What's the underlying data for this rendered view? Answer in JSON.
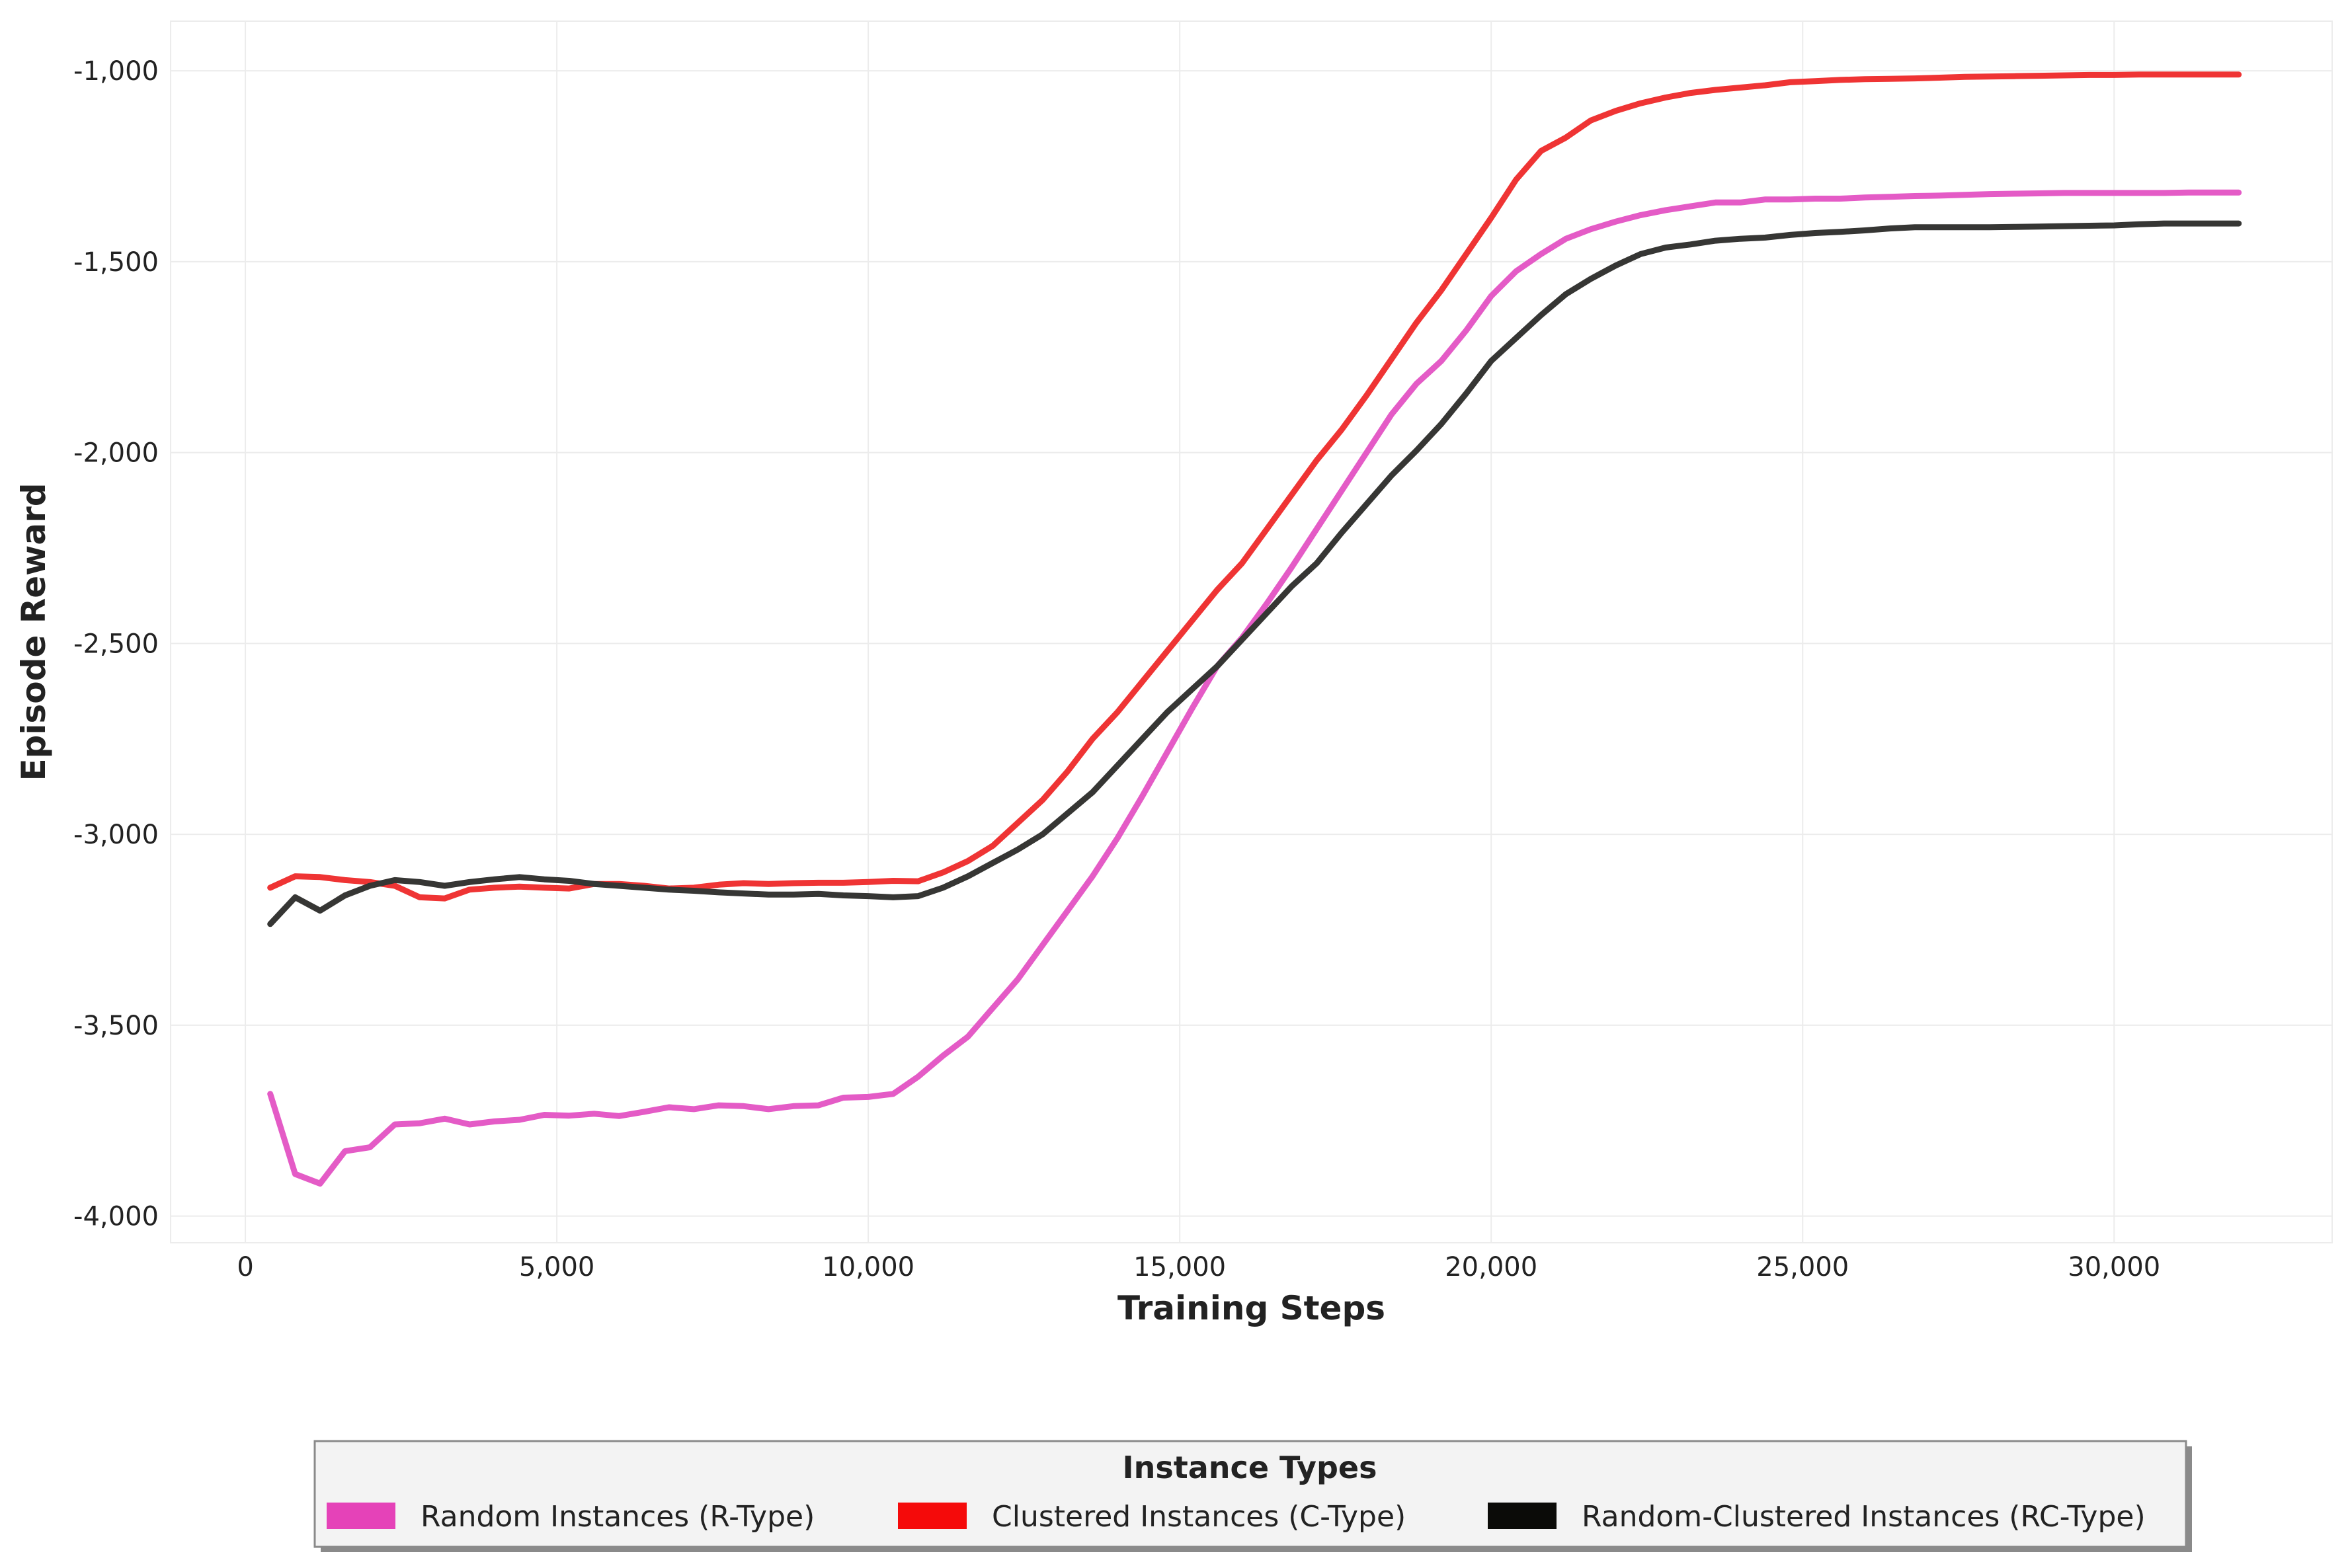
{
  "chart_data": {
    "type": "line",
    "title": "",
    "xlabel": "Training Steps",
    "ylabel": "Episode Reward",
    "xlim": [
      -1200,
      33500
    ],
    "ylim": [
      -4070,
      -870
    ],
    "x_ticks": [
      0,
      5000,
      10000,
      15000,
      20000,
      25000,
      30000
    ],
    "x_tick_labels": [
      "0",
      "5,000",
      "10,000",
      "15,000",
      "20,000",
      "25,000",
      "30,000"
    ],
    "y_ticks": [
      -4000,
      -3500,
      -3000,
      -2500,
      -2000,
      -1500,
      -1000
    ],
    "y_tick_labels": [
      "-4,000",
      "-3,500",
      "-3,000",
      "-2,500",
      "-2,000",
      "-1,500",
      "-1,000"
    ],
    "grid": true,
    "legend": {
      "title": "Instance Types",
      "placement": "bottom-center",
      "entries": [
        {
          "label": "Random Instances (R-Type)",
          "color": "#e542b8"
        },
        {
          "label": "Clustered Instances (C-Type)",
          "color": "#f50a0a"
        },
        {
          "label": "Random-Clustered Instances (RC-Type)",
          "color": "#0b0b08"
        }
      ]
    },
    "series": [
      {
        "name": "Random Instances (R-Type)",
        "color": "#e45bc6",
        "x": [
          400,
          800,
          1200,
          1600,
          2000,
          2400,
          2800,
          3200,
          3600,
          4000,
          4400,
          4800,
          5200,
          5600,
          6000,
          6400,
          6800,
          7200,
          7600,
          8000,
          8400,
          8800,
          9200,
          9600,
          10000,
          10400,
          10800,
          11200,
          11600,
          12000,
          12400,
          12800,
          13200,
          13600,
          14000,
          14400,
          14800,
          15200,
          15600,
          16000,
          16400,
          16800,
          17200,
          17600,
          18000,
          18400,
          18800,
          19200,
          19600,
          20000,
          20400,
          20800,
          21200,
          21600,
          22000,
          22400,
          22800,
          23200,
          23600,
          24000,
          24400,
          24800,
          25200,
          25600,
          26000,
          26400,
          26800,
          27200,
          27600,
          28000,
          28400,
          28800,
          29200,
          29600,
          30000,
          30400,
          30800,
          31200,
          31600,
          32000
        ],
        "values": [
          -3680,
          -3890,
          -3915,
          -3830,
          -3820,
          -3760,
          -3757,
          -3745,
          -3760,
          -3752,
          -3748,
          -3735,
          -3737,
          -3732,
          -3738,
          -3727,
          -3715,
          -3720,
          -3710,
          -3712,
          -3720,
          -3712,
          -3710,
          -3690,
          -3688,
          -3680,
          -3635,
          -3580,
          -3530,
          -3455,
          -3380,
          -3290,
          -3200,
          -3110,
          -3010,
          -2900,
          -2785,
          -2670,
          -2560,
          -2485,
          -2395,
          -2300,
          -2200,
          -2100,
          -2000,
          -1900,
          -1820,
          -1760,
          -1680,
          -1590,
          -1525,
          -1480,
          -1440,
          -1415,
          -1395,
          -1378,
          -1365,
          -1355,
          -1345,
          -1345,
          -1337,
          -1337,
          -1335,
          -1335,
          -1332,
          -1330,
          -1328,
          -1327,
          -1325,
          -1323,
          -1322,
          -1321,
          -1320,
          -1320,
          -1320,
          -1320,
          -1320,
          -1319,
          -1319,
          -1319
        ]
      },
      {
        "name": "Clustered Instances (C-Type)",
        "color": "#ef3434",
        "x": [
          400,
          800,
          1200,
          1600,
          2000,
          2400,
          2800,
          3200,
          3600,
          4000,
          4400,
          4800,
          5200,
          5600,
          6000,
          6400,
          6800,
          7200,
          7600,
          8000,
          8400,
          8800,
          9200,
          9600,
          10000,
          10400,
          10800,
          11200,
          11600,
          12000,
          12400,
          12800,
          13200,
          13600,
          14000,
          14400,
          14800,
          15200,
          15600,
          16000,
          16400,
          16800,
          17200,
          17600,
          18000,
          18400,
          18800,
          19200,
          19600,
          20000,
          20400,
          20800,
          21200,
          21600,
          22000,
          22400,
          22800,
          23200,
          23600,
          24000,
          24400,
          24800,
          25200,
          25600,
          26000,
          26400,
          26800,
          27200,
          27600,
          28000,
          28400,
          28800,
          29200,
          29600,
          30000,
          30400,
          30800,
          31200,
          31600,
          32000
        ],
        "values": [
          -3140,
          -3110,
          -3112,
          -3120,
          -3125,
          -3135,
          -3165,
          -3168,
          -3145,
          -3140,
          -3137,
          -3140,
          -3142,
          -3130,
          -3130,
          -3135,
          -3142,
          -3140,
          -3132,
          -3128,
          -3130,
          -3128,
          -3127,
          -3127,
          -3125,
          -3122,
          -3123,
          -3100,
          -3070,
          -3030,
          -2970,
          -2910,
          -2835,
          -2750,
          -2680,
          -2600,
          -2520,
          -2440,
          -2360,
          -2290,
          -2200,
          -2110,
          -2020,
          -1940,
          -1850,
          -1755,
          -1660,
          -1575,
          -1480,
          -1385,
          -1285,
          -1210,
          -1175,
          -1130,
          -1105,
          -1085,
          -1070,
          -1058,
          -1050,
          -1044,
          -1038,
          -1030,
          -1027,
          -1024,
          -1022,
          -1021,
          -1020,
          -1018,
          -1016,
          -1015,
          -1014,
          -1013,
          -1012,
          -1011,
          -1011,
          -1010,
          -1010,
          -1010,
          -1010,
          -1010
        ]
      },
      {
        "name": "Random-Clustered Instances (RC-Type)",
        "color": "#363634",
        "x": [
          400,
          800,
          1200,
          1600,
          2000,
          2400,
          2800,
          3200,
          3600,
          4000,
          4400,
          4800,
          5200,
          5600,
          6000,
          6400,
          6800,
          7200,
          7600,
          8000,
          8400,
          8800,
          9200,
          9600,
          10000,
          10400,
          10800,
          11200,
          11600,
          12000,
          12400,
          12800,
          13200,
          13600,
          14000,
          14400,
          14800,
          15200,
          15600,
          16000,
          16400,
          16800,
          17200,
          17600,
          18000,
          18400,
          18800,
          19200,
          19600,
          20000,
          20400,
          20800,
          21200,
          21600,
          22000,
          22400,
          22800,
          23200,
          23600,
          24000,
          24400,
          24800,
          25200,
          25600,
          26000,
          26400,
          26800,
          27200,
          27600,
          28000,
          28400,
          28800,
          29200,
          29600,
          30000,
          30400,
          30800,
          31200,
          31600,
          32000
        ],
        "values": [
          -3235,
          -3165,
          -3200,
          -3160,
          -3135,
          -3120,
          -3125,
          -3135,
          -3125,
          -3118,
          -3112,
          -3118,
          -3122,
          -3130,
          -3135,
          -3140,
          -3145,
          -3148,
          -3152,
          -3155,
          -3158,
          -3158,
          -3156,
          -3160,
          -3162,
          -3165,
          -3162,
          -3140,
          -3110,
          -3075,
          -3040,
          -3000,
          -2945,
          -2890,
          -2820,
          -2750,
          -2680,
          -2620,
          -2560,
          -2490,
          -2420,
          -2350,
          -2290,
          -2210,
          -2135,
          -2060,
          -1995,
          -1925,
          -1845,
          -1760,
          -1700,
          -1640,
          -1585,
          -1545,
          -1510,
          -1480,
          -1463,
          -1455,
          -1445,
          -1440,
          -1437,
          -1430,
          -1425,
          -1422,
          -1418,
          -1413,
          -1410,
          -1410,
          -1410,
          -1410,
          -1409,
          -1408,
          -1407,
          -1406,
          -1405,
          -1402,
          -1400,
          -1400,
          -1400,
          -1400
        ]
      }
    ]
  }
}
